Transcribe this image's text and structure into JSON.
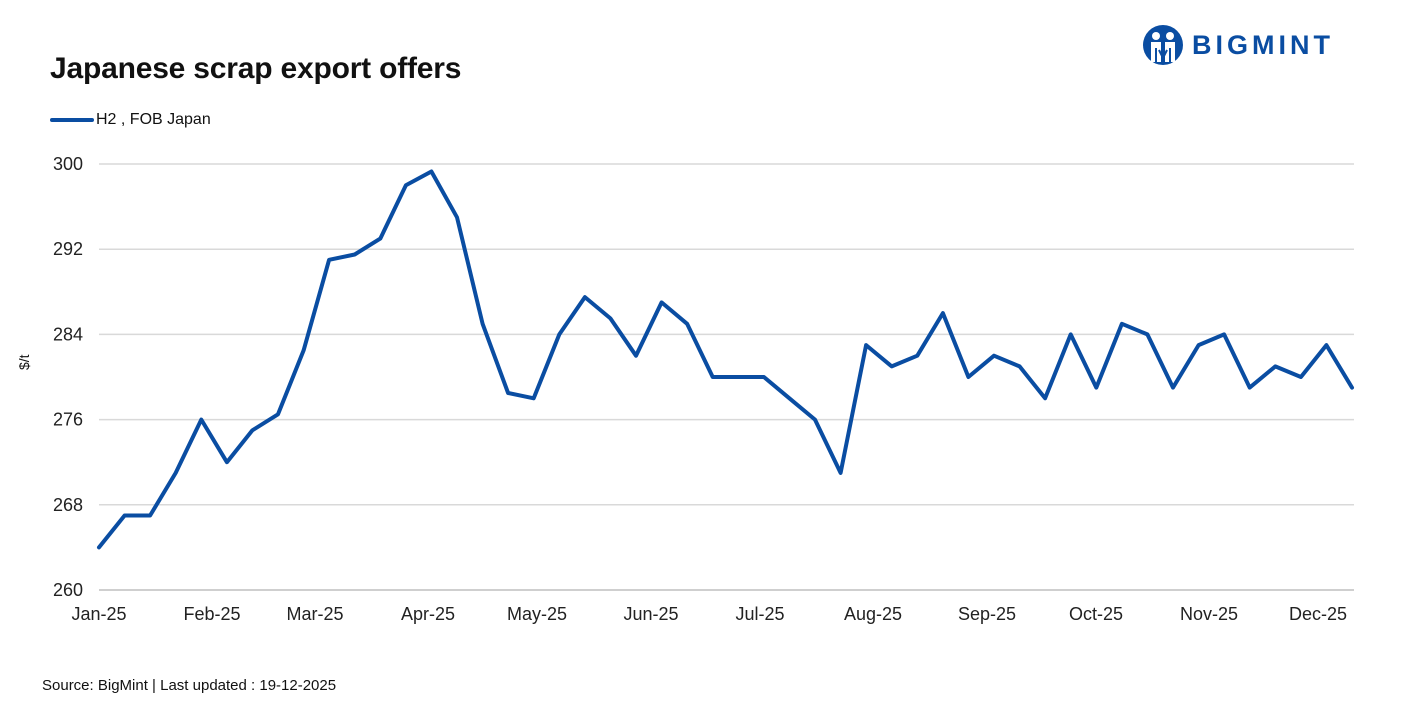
{
  "header": {
    "title": "Japanese scrap export offers",
    "logo_text": "BIGMINT"
  },
  "legend": [
    {
      "label": "H2 , FOB Japan",
      "color": "#0a4da2"
    }
  ],
  "footer": {
    "source": "Source: BigMint  | Last updated : 19-12-2025"
  },
  "chart_data": {
    "type": "line",
    "title": "Japanese scrap export offers",
    "xlabel": "",
    "ylabel": "$/t",
    "ylim": [
      260,
      300
    ],
    "yticks": [
      260,
      268,
      276,
      284,
      292,
      300
    ],
    "xtick_labels": [
      "Jan-25",
      "Feb-25",
      "Mar-25",
      "Apr-25",
      "May-25",
      "Jun-25",
      "Jul-25",
      "Aug-25",
      "Sep-25",
      "Oct-25",
      "Nov-25",
      "Dec-25"
    ],
    "grid": true,
    "legend_position": "top-left",
    "series": [
      {
        "name": "H2 , FOB Japan",
        "color": "#0a4da2",
        "values": [
          264,
          267,
          267,
          271,
          276,
          272,
          275,
          276.5,
          282.5,
          291,
          291.5,
          293,
          298,
          299.3,
          295,
          285,
          278.5,
          278,
          284,
          287.5,
          285.5,
          282,
          287,
          285,
          280,
          280,
          280,
          278,
          276,
          271,
          283,
          281,
          282,
          286,
          280,
          282,
          281,
          278,
          284,
          279,
          285,
          284,
          279,
          283,
          284,
          279,
          281,
          280,
          283,
          279
        ]
      }
    ]
  }
}
